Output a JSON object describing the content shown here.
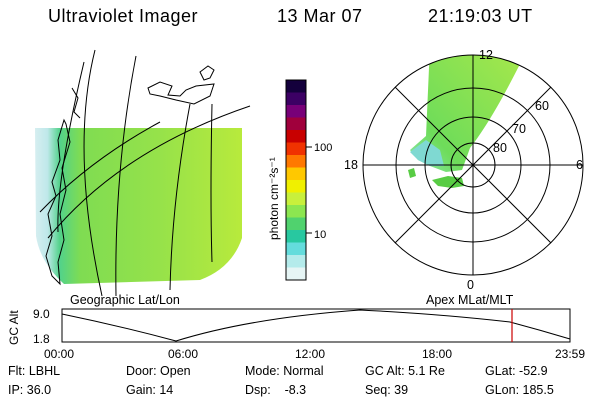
{
  "header": {
    "instrument": "Ultraviolet Imager",
    "date": "13 Mar 07",
    "time": "21:19:03 UT"
  },
  "colorbar": {
    "label": "photon cm⁻²s⁻¹",
    "ticks": [
      "100",
      "10"
    ],
    "colors_top_to_bottom": [
      "#14003c",
      "#3c0064",
      "#780078",
      "#a0003c",
      "#c80000",
      "#f03200",
      "#ff7800",
      "#ffc800",
      "#f0f000",
      "#c8f03c",
      "#8ce650",
      "#50d26e",
      "#28c8a0",
      "#64dcdc",
      "#b4ebeb",
      "#e6f5f5"
    ]
  },
  "geo_panel": {
    "caption": "Geographic Lat/Lon"
  },
  "polar_panel": {
    "caption": "Apex MLat/MLT",
    "mlt_labels": {
      "top": "12",
      "left": "18",
      "right": "6",
      "bottom": "0"
    },
    "lat_labels": [
      "80",
      "70",
      "60"
    ]
  },
  "timeline": {
    "ylabel": "GC Alt",
    "ytick_top": "9.0",
    "ytick_bottom": "1.8",
    "xticks": [
      "00:00",
      "06:00",
      "12:00",
      "18:00",
      "23:59"
    ],
    "current_marker_color": "#cc0000"
  },
  "status": {
    "flt": "Flt: LBHL",
    "ip": "IP: 36.0",
    "door": "Door: Open",
    "gain": "Gain: 14",
    "mode": "Mode: Normal",
    "dsp": "Dsp:    -8.3",
    "gcalt": "GC Alt: 5.1 Re",
    "seq": "Seq: 39",
    "glat": "GLat: -52.9",
    "glon": "GLon: 185.5"
  }
}
